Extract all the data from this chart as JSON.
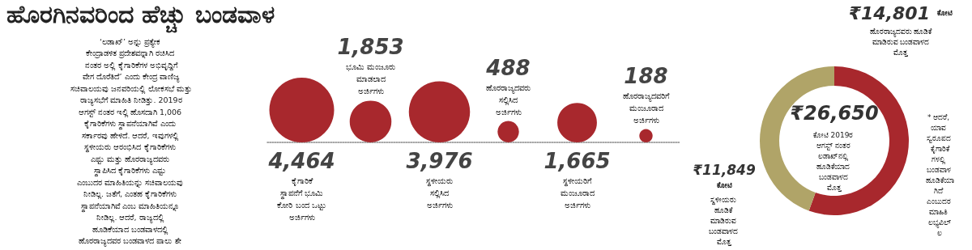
{
  "chart_data": [
    {
      "type": "other",
      "title": "ಹೊರಗಿನವರಿಂದ ಹೆಚ್ಚು ಬಂಡವಾಳ",
      "annotations": [
        "‘ಲಡಾಖ್’ ಅನ್ನು ಪ್ರತ್ಯೇಕ ಕೇಂದ್ರಾಡಳಿತ ಪ್ರದೇಶವನ್ನಾಗಿ ರಚಿಸಿದ ನಂತರ ಅಲ್ಲಿ ಕೈಗಾರಿಕೆಗಳ ಅಭಿವೃದ್ಧಿಗೆ ವೇಗ ದೊರೆತಿದೆ’ ಎಂದು ಕೇಂದ್ರ ವಾಣಿಜ್ಯ ಸಚಿವಾಲಯವು ಜನವರಿಯಲ್ಲಿ ಲೋಕಸಭೆ ಮತ್ತು ರಾಜ್ಯಸಭೆಗೆ ಮಾಹಿತಿ ನೀಡಿತ್ತು. 2019ರ ಆಗಸ್ಟ್ ನಂತರ ಇಲ್ಲಿ ಹೊಸದಾಗಿ 1,006 ಕೈಗಾರಿಕೆಗಳು ಸ್ಥಾಪನೆಯಾಗಿವೆ ಎಂದು ಸರ್ಕಾರವು ಹೇಳಿದೆ. ಆದರೆ, ಇವುಗಳಲ್ಲಿ ಸ್ಥಳೀಯರು ಆರಂಭಿಸಿದ ಕೈಗಾರಿಕೆಗಳು ಎಷ್ಟು ಮತ್ತು ಹೊರರಾಜ್ಯದವರು ಸ್ಥಾಪಿಸಿದ ಕೈಗಾರಿಕೆಗಳು ಎಷ್ಟು ಎಂಬುದರ ಮಾಹಿತಿಯನ್ನು ಸಚಿವಾಲಯವು ನೀಡಿಲ್ಲ. ಜತೆಗೆ, ಎಂತಹ ಕೈಗಾರಿಕೆಗಳು ಸ್ಥಾಪನೆಯಾಗಿವೆ ಎಂಬ ಮಾಹಿತಿಯನ್ನೂ ನೀಡಿಲ್ಲ. ಆದರೆ, ರಾಜ್ಯದಲ್ಲಿ ಹೂಡಿಕೆಯಾದ ಬಂಡವಾಳದಲ್ಲಿ ಹೊರರಾಜ್ಯದವರ ಬಂಡವಾಳದ ಪಾಲು ಶೇ 55ಕ್ಕಿಂತಲೂ ಹೆಚ್ಚು ಎಂದು ಸಚಿವಾಲಯದ ದತ್ತಾಂಶಗಳು ಹೇಳುತ್ತವೆ."
      ],
      "categories": [
        "ಕೈಗಾರಿಕೆ ಸ್ಥಾಪನೆಗೆ ಭೂಮಿ ಕೋರಿ ಬಂದ ಒಟ್ಟು ಅರ್ಜಿಗಳು",
        "ಭೂಮಿ ಮಂಜೂರು ಮಾಡಲಾದ ಅರ್ಜಿಗಳು",
        "ಸ್ಥಳೀಯರು ಸಲ್ಲಿಸಿದ ಅರ್ಜಿಗಳು",
        "ಹೊರರಾಜ್ಯದವರು ಸಲ್ಲಿಸಿದ ಅರ್ಜಿಗಳು",
        "ಸ್ಥಳೀಯರಿಗೆ ಮಂಜೂರಾದ ಅರ್ಜಿಗಳು",
        "ಹೊರರಾಜ್ಯದವರಿಗೆ ಮಂಜೂರಾದ ಅರ್ಜಿಗಳು"
      ],
      "values": [
        4464,
        1853,
        3976,
        488,
        1665,
        188
      ],
      "value_labels": [
        "4,464",
        "1,853",
        "3,976",
        "488",
        "1,665",
        "188"
      ],
      "color": "#a8282d"
    },
    {
      "type": "donut",
      "title": "₹26,650",
      "subtitle": "ಕೋಟಿ 2019ರ ಆಗಸ್ಟ್ ನಂತರ ಲಡಾಖ್‌ನಲ್ಲಿ ಹೂಡಿಕೆಯಾದ ಬಂಡವಾಳದ ಮೊತ್ತ",
      "categories": [
        "ಹೊರರಾಜ್ಯದವರು ಹೂಡಿಕೆ ಮಾಡಿರುವ ಬಂಡವಾಳದ ಮೊತ್ತ",
        "ಸ್ಥಳೀಯರು ಹೂಡಿಕೆ ಮಾಡಿರುವ ಬಂಡವಾಳದ ಮೊತ್ತ"
      ],
      "values": [
        14801,
        11849
      ],
      "value_labels": [
        "₹14,801 ಕೋಟಿ",
        "₹11,849 ಕೋಟಿ"
      ],
      "colors": [
        "#a8282d",
        "#b0a468"
      ],
      "annotations": [
        "* ಆದರೆ, ಯಾವ ಸ್ವರೂಪದ ಕೈಗಾರಿಕೆಗಳಲ್ಲಿ ಬಂಡವಾಳ ಹೂಡಿಕೆಯಾಗಿದೆ ಎಂಬುದರ ಮಾಹಿತಿ ಲಭ್ಯವಿಲ್ಲ"
      ]
    }
  ]
}
